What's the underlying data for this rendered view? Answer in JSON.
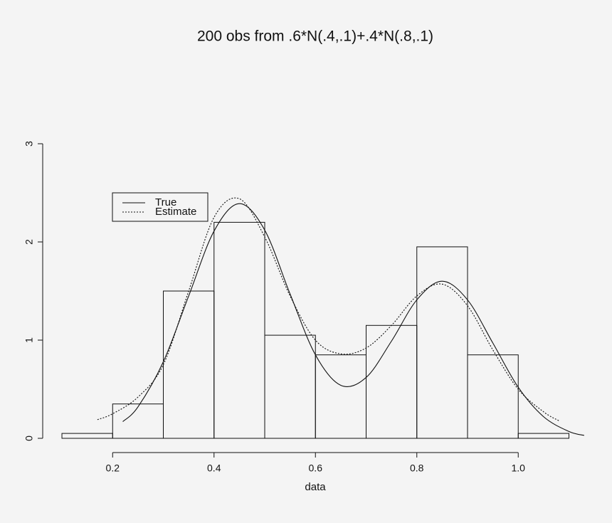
{
  "chart_data": {
    "type": "histogram",
    "title": "200 obs from .6*N(.4,.1)+.4*N(.8,.1)",
    "x_label": "data",
    "bins": [
      0.1,
      0.2,
      0.3,
      0.4,
      0.5,
      0.6,
      0.7,
      0.8,
      0.9,
      1.0,
      1.1
    ],
    "values": [
      0.05,
      0.35,
      1.5,
      2.2,
      1.05,
      0.85,
      1.15,
      1.95,
      0.85,
      0.05
    ],
    "color": "#111111",
    "series": [
      {
        "name": "True",
        "color": "#111111",
        "dash": "solid",
        "x": [
          0.22,
          0.25,
          0.3,
          0.35,
          0.4,
          0.45,
          0.5,
          0.55,
          0.6,
          0.65,
          0.7,
          0.75,
          0.8,
          0.85,
          0.9,
          0.95,
          1.0,
          1.05,
          1.1,
          1.13
        ],
        "values": [
          0.17,
          0.32,
          0.78,
          1.45,
          2.11,
          2.39,
          2.12,
          1.47,
          0.85,
          0.54,
          0.62,
          0.99,
          1.41,
          1.6,
          1.41,
          0.97,
          0.52,
          0.22,
          0.07,
          0.03
        ]
      },
      {
        "name": "Estimate",
        "color": "#111111",
        "dash": "dotted",
        "x": [
          0.17,
          0.2,
          0.25,
          0.3,
          0.35,
          0.4,
          0.45,
          0.5,
          0.55,
          0.6,
          0.65,
          0.7,
          0.75,
          0.8,
          0.85,
          0.9,
          0.95,
          1.0,
          1.05,
          1.08
        ],
        "values": [
          0.19,
          0.25,
          0.42,
          0.75,
          1.5,
          2.25,
          2.44,
          2.05,
          1.45,
          1.0,
          0.86,
          0.92,
          1.15,
          1.45,
          1.57,
          1.35,
          0.9,
          0.5,
          0.27,
          0.18
        ]
      }
    ],
    "xlim": [
      0.05,
      1.15
    ],
    "ylim": [
      0,
      3
    ],
    "xticks": [
      0.2,
      0.4,
      0.6,
      0.8,
      {
        "value": 1,
        "label": "1.0"
      }
    ],
    "yticks": [
      0,
      1,
      2,
      3
    ],
    "legend": "top-left"
  }
}
